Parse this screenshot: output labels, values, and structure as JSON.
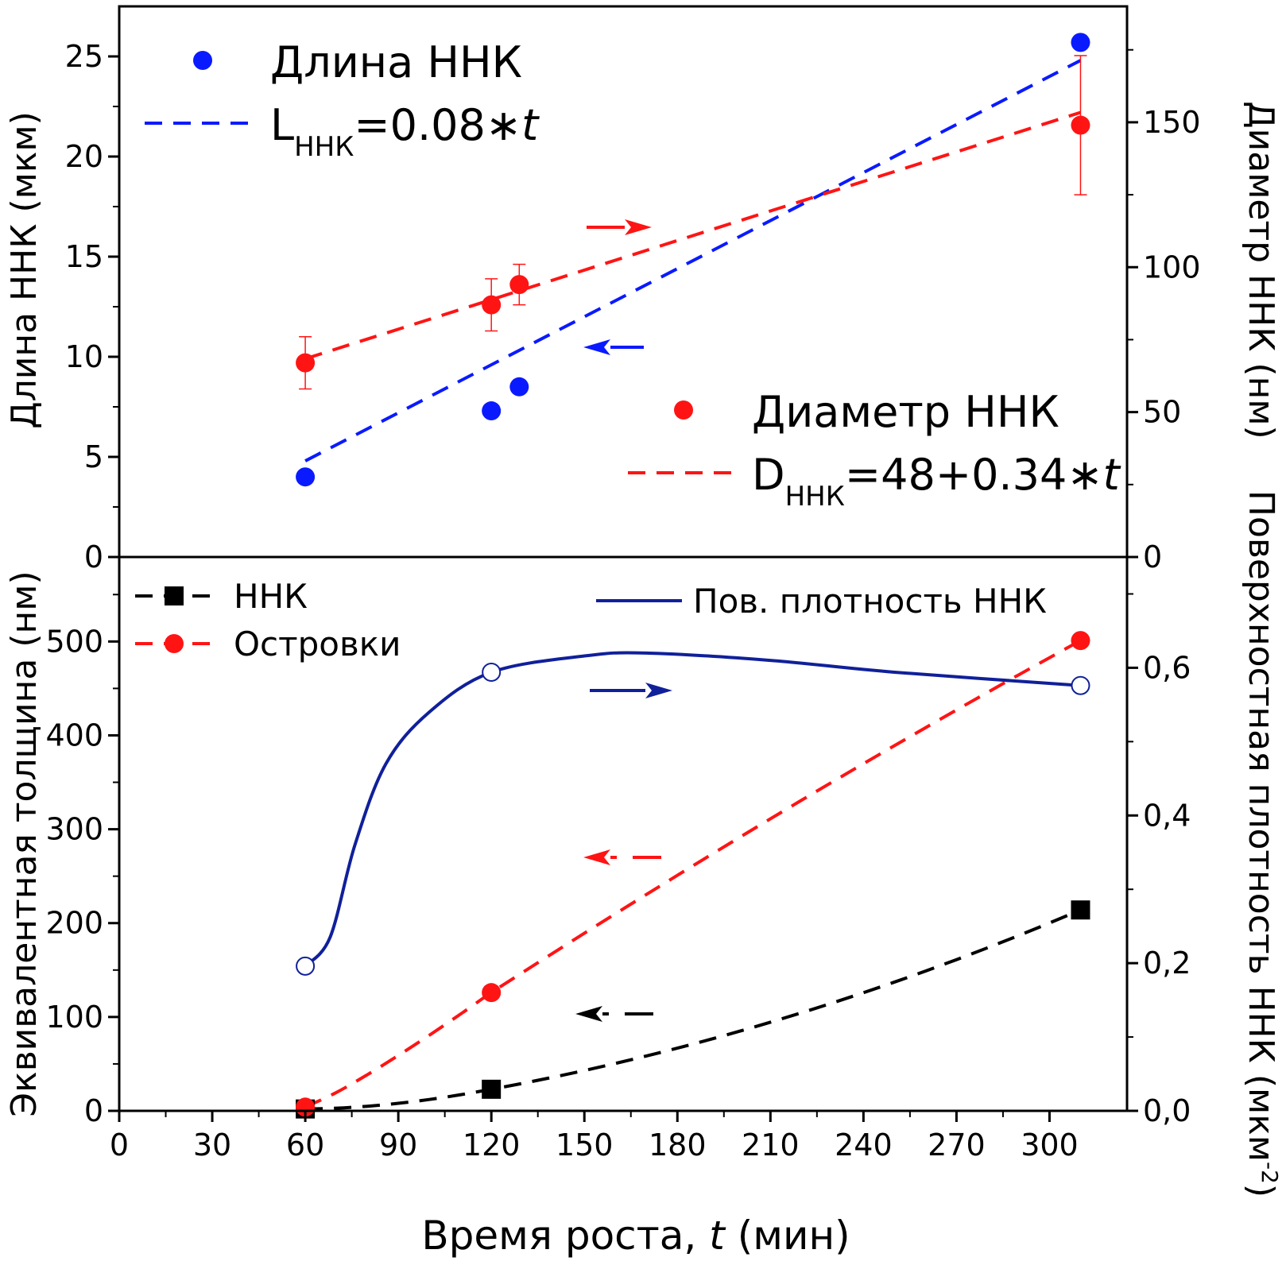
{
  "colors": {
    "blue": "#0a1aff",
    "red": "#ff1414",
    "black": "#000000",
    "navy": "#10209a"
  },
  "chart_data": [
    {
      "type": "scatter",
      "panel": "top",
      "xlabel": "Время роста, t (мин)",
      "ylabel_left": "Длина ННК (мкм)",
      "ylabel_right": "Диаметр ННК (нм)",
      "ylim_left": [
        0,
        27.5
      ],
      "ylim_right": [
        0,
        190
      ],
      "yticks_left": [
        "0",
        "5",
        "10",
        "15",
        "20",
        "25"
      ],
      "yticks_right": [
        "0",
        "50",
        "100",
        "150"
      ],
      "series": [
        {
          "name": "Длина ННК",
          "axis": "left",
          "color": "#0a1aff",
          "x": [
            60,
            120,
            129,
            310
          ],
          "y": [
            4.0,
            7.3,
            8.5,
            25.7
          ],
          "err": [
            0,
            0.3,
            0,
            0
          ]
        },
        {
          "name": "Диаметр ННК",
          "axis": "right",
          "color": "#ff1414",
          "x": [
            60,
            120,
            129,
            310
          ],
          "y": [
            67,
            87,
            94,
            149
          ],
          "err": [
            9,
            9,
            7,
            24
          ]
        }
      ],
      "fits": [
        {
          "name_main": "L",
          "name_sub": "ННК",
          "name_rest": "=0.08∗",
          "name_var": "t",
          "axis": "left",
          "color": "#0a1aff",
          "intercept": 0,
          "slope": 0.08,
          "x_range": [
            60,
            310
          ]
        },
        {
          "name_main": "D",
          "name_sub": "ННК",
          "name_rest": "=48+0.34∗",
          "name_var": "t",
          "axis": "right",
          "color": "#ff1414",
          "intercept": 48,
          "slope": 0.34,
          "x_range": [
            60,
            310
          ]
        }
      ]
    },
    {
      "type": "line",
      "panel": "bottom",
      "xlabel": "Время роста, t (мин)",
      "ylabel_left": "Эквивалентная толщина (нм)",
      "ylabel_right": "Поверхностная плотность ННК (мкм⁻²)",
      "xlim": [
        0,
        325
      ],
      "xticks": [
        "0",
        "30",
        "60",
        "90",
        "120",
        "150",
        "180",
        "210",
        "240",
        "270",
        "300"
      ],
      "ylim_left": [
        0,
        590
      ],
      "ylim_right": [
        0,
        0.75
      ],
      "yticks_left": [
        "0",
        "100",
        "200",
        "300",
        "400",
        "500"
      ],
      "yticks_right": [
        "0,0",
        "0,2",
        "0,4",
        "0,6"
      ],
      "series": [
        {
          "name": "ННК",
          "axis": "left",
          "color": "#000000",
          "marker": "square",
          "x": [
            60,
            120,
            310
          ],
          "y": [
            2,
            23,
            214
          ]
        },
        {
          "name": "Островки",
          "axis": "left",
          "color": "#ff1414",
          "marker": "circle",
          "x": [
            60,
            120,
            310
          ],
          "y": [
            4,
            126,
            501
          ]
        },
        {
          "name": "Пов. плотность ННК",
          "axis": "right",
          "color": "#10209a",
          "marker": "open-circle",
          "x": [
            60,
            120,
            310
          ],
          "y": [
            0.196,
            0.594,
            0.576
          ]
        }
      ]
    }
  ],
  "labels": {
    "top_ylabel": "Длина ННК (мкм)",
    "top_ylabel_right": "Диаметр ННК (нм)",
    "bottom_ylabel": "Эквивалентная толщина (нм)",
    "bottom_ylabel_right_main": "Поверхностная плотность ННК (мкм",
    "bottom_ylabel_right_sup": "-2",
    "bottom_ylabel_right_end": ")",
    "xlabel_main": "Время роста, ",
    "xlabel_var": "t",
    "xlabel_unit": " (мин)"
  }
}
